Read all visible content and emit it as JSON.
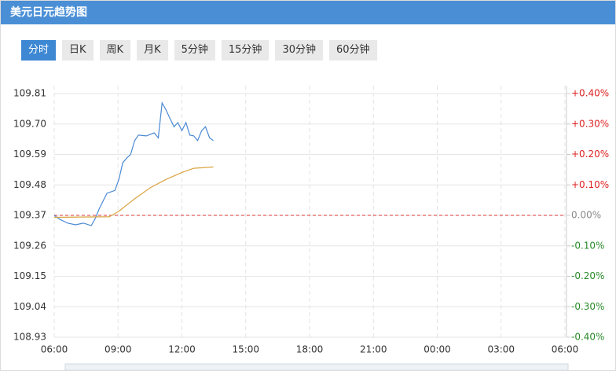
{
  "header": {
    "title": "美元日元趋势图"
  },
  "tabs": [
    "分时",
    "日K",
    "周K",
    "月K",
    "5分钟",
    "15分钟",
    "30分钟",
    "60分钟"
  ],
  "chart_data": {
    "type": "line",
    "xlim": [
      0,
      24
    ],
    "xticks": [
      {
        "value": 0,
        "label": "06:00"
      },
      {
        "value": 3,
        "label": "09:00"
      },
      {
        "value": 6,
        "label": "12:00"
      },
      {
        "value": 9,
        "label": "15:00"
      },
      {
        "value": 12,
        "label": "18:00"
      },
      {
        "value": 15,
        "label": "21:00"
      },
      {
        "value": 18,
        "label": "00:00"
      },
      {
        "value": 21,
        "label": "03:00"
      },
      {
        "value": 24,
        "label": "06:00"
      }
    ],
    "ylim": [
      108.93,
      109.81
    ],
    "yticks": [
      109.81,
      {
        "value": 109.7,
        "label": "109.70"
      },
      109.59,
      109.48,
      109.37,
      109.26,
      109.15,
      109.04,
      108.93
    ],
    "y2lim": [
      -0.4,
      0.4
    ],
    "y2ticks": [
      {
        "value": 0.4,
        "label": "+0.40%"
      },
      {
        "value": 0.3,
        "label": "+0.30%"
      },
      {
        "value": 0.2,
        "label": "+0.20%"
      },
      {
        "value": 0.1,
        "label": "+0.10%"
      },
      {
        "value": 0,
        "label": "0.00%"
      },
      {
        "value": -0.1,
        "label": "-0.10%"
      },
      {
        "value": -0.2,
        "label": "-0.20%"
      },
      {
        "value": -0.3,
        "label": "-0.30%"
      },
      {
        "value": -0.4,
        "label": "-0.40%"
      }
    ],
    "baseline": 109.37,
    "grid": true,
    "series": [
      {
        "color": "#4a8ad4",
        "x": [
          0,
          0.26,
          0.63,
          1.0,
          1.37,
          1.74,
          1.93,
          2.11,
          2.48,
          2.85,
          3.04,
          3.22,
          3.41,
          3.59,
          3.78,
          3.96,
          4.33,
          4.7,
          4.89,
          5.07,
          5.26,
          5.44,
          5.63,
          5.81,
          6.0,
          6.19,
          6.37,
          6.56,
          6.74,
          6.93,
          7.11,
          7.3,
          7.48
        ],
        "values": [
          109.37,
          109.356,
          109.342,
          109.336,
          109.342,
          109.333,
          109.359,
          109.393,
          109.45,
          109.46,
          109.5,
          109.56,
          109.577,
          109.59,
          109.64,
          109.66,
          109.657,
          109.668,
          109.65,
          109.776,
          109.75,
          109.72,
          109.69,
          109.705,
          109.676,
          109.705,
          109.66,
          109.657,
          109.64,
          109.676,
          109.69,
          109.65,
          109.64
        ]
      },
      {
        "color": "#d9a441",
        "x": [
          0,
          2.59,
          3.04,
          3.78,
          4.52,
          5.26,
          6.0,
          6.56,
          7.48
        ],
        "values": [
          109.363,
          109.365,
          109.385,
          109.43,
          109.47,
          109.5,
          109.525,
          109.54,
          109.545
        ]
      }
    ]
  }
}
